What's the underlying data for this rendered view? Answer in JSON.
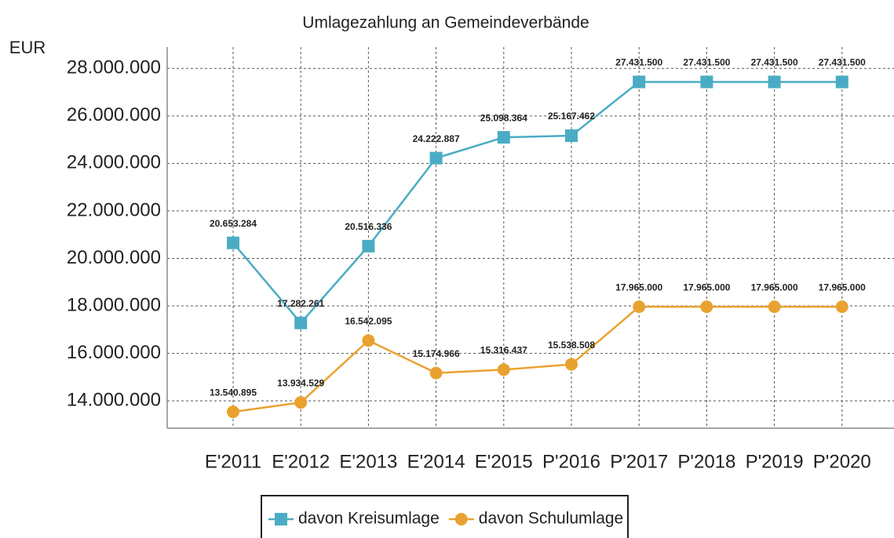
{
  "chart_data": {
    "type": "line",
    "title": "Umlagezahlung an Gemeindeverbände",
    "y_label": "EUR",
    "categories": [
      "E'2011",
      "E'2012",
      "E'2013",
      "E'2014",
      "E'2015",
      "P'2016",
      "P'2017",
      "P'2018",
      "P'2019",
      "P'2020"
    ],
    "series": [
      {
        "name": "davon Kreisumlage",
        "color": "#4aacc4",
        "marker": "square",
        "values": [
          20653284,
          17282261,
          20516336,
          24222887,
          25098364,
          25167462,
          27431500,
          27431500,
          27431500,
          27431500
        ],
        "value_labels": [
          "20.653.284",
          "17.282.261",
          "20.516.336",
          "24.222.887",
          "25.098.364",
          "25.167.462",
          "27.431.500",
          "27.431.500",
          "27.431.500",
          "27.431.500"
        ]
      },
      {
        "name": "davon Schulumlage",
        "color": "#e9a22f",
        "marker": "circle",
        "values": [
          13540895,
          13934529,
          16542095,
          15174966,
          15316437,
          15538508,
          17965000,
          17965000,
          17965000,
          17965000
        ],
        "value_labels": [
          "13.540.895",
          "13.934.529",
          "16.542.095",
          "15.174.966",
          "15.316.437",
          "15.538.508",
          "17.965.000",
          "17.965.000",
          "17.965.000",
          "17.965.000"
        ]
      }
    ],
    "ylim": [
      12850000,
      28900000
    ],
    "yticks": [
      {
        "value": 14000000,
        "label": "14.000.000"
      },
      {
        "value": 16000000,
        "label": "16.000.000"
      },
      {
        "value": 18000000,
        "label": "18.000.000"
      },
      {
        "value": 20000000,
        "label": "20.000.000"
      },
      {
        "value": 22000000,
        "label": "22.000.000"
      },
      {
        "value": 24000000,
        "label": "24.000.000"
      },
      {
        "value": 26000000,
        "label": "26.000.000"
      },
      {
        "value": 28000000,
        "label": "28.000.000"
      }
    ],
    "grid": true,
    "legend": "bottom"
  }
}
